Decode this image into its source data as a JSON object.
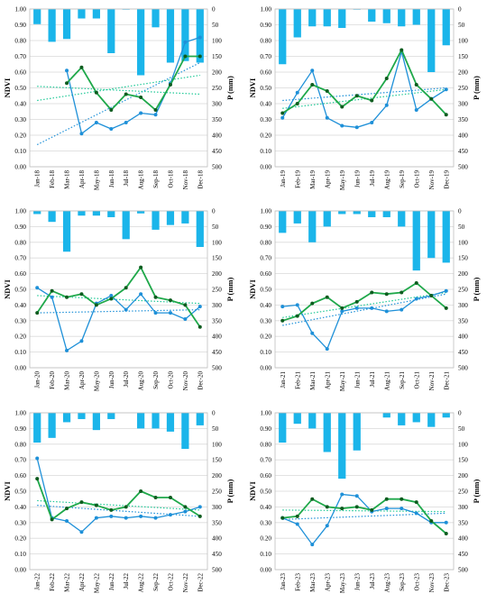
{
  "figure": {
    "left_axis_label": "NDVI",
    "right_axis_label": "P (mm)",
    "ndvi_ticks": [
      "0.00",
      "0.10",
      "0.20",
      "0.30",
      "0.40",
      "0.50",
      "0.60",
      "0.70",
      "0.80",
      "0.90",
      "1.00"
    ],
    "p_ticks": [
      "0",
      "50",
      "100",
      "150",
      "200",
      "250",
      "300",
      "350",
      "400",
      "450",
      "500"
    ],
    "colors": {
      "precip_bar": "#1bb5ea",
      "ndvi_a": "#1e90d8",
      "ndvi_b": "#1fa84a",
      "ndvi_b_marker": "#0d5c1f",
      "grid": "#d9d9d9"
    }
  },
  "chart_data": [
    {
      "type": "bar+line",
      "year": "2018",
      "categories": [
        "Jan-18",
        "Feb-18",
        "Mar-18",
        "Apr-18",
        "May-18",
        "Jun-18",
        "Jul-18",
        "Aug-18",
        "Sep-18",
        "Oct-18",
        "Nov-18",
        "Dec-18"
      ],
      "precipitation_mm": [
        48,
        104,
        95,
        30,
        30,
        140,
        2,
        210,
        58,
        170,
        165,
        170
      ],
      "series": [
        {
          "values": [
            null,
            null,
            0.61,
            0.21,
            0.28,
            0.24,
            0.28,
            0.34,
            0.33,
            0.53,
            0.79,
            0.82
          ]
        },
        {
          "values": [
            null,
            null,
            0.53,
            0.63,
            0.47,
            0.36,
            0.46,
            0.44,
            0.36,
            0.52,
            0.7,
            0.7
          ]
        }
      ],
      "trends": [
        [
          0.14,
          0.66
        ],
        [
          0.42,
          0.58
        ],
        [
          0.51,
          0.46
        ]
      ],
      "ylim": [
        0,
        1
      ],
      "y2lim": [
        500,
        0
      ]
    },
    {
      "type": "bar+line",
      "year": "2019",
      "categories": [
        "Jan-19",
        "Feb-19",
        "Mar-19",
        "Apr-19",
        "May-19",
        "Jun-19",
        "Jul-19",
        "Aug-19",
        "Sep-19",
        "Oct-19",
        "Nov-19",
        "Dec-19"
      ],
      "precipitation_mm": [
        175,
        90,
        55,
        55,
        60,
        2,
        40,
        45,
        55,
        50,
        200,
        115
      ],
      "series": [
        {
          "values": [
            0.31,
            0.47,
            0.61,
            0.31,
            0.26,
            0.25,
            0.28,
            0.39,
            0.73,
            0.36,
            0.43,
            0.49
          ]
        },
        {
          "values": [
            0.34,
            0.4,
            0.52,
            0.48,
            0.38,
            0.45,
            0.42,
            0.56,
            0.74,
            0.52,
            0.43,
            0.33
          ]
        }
      ],
      "trends": [
        [
          0.42,
          0.5
        ],
        [
          0.37,
          0.49
        ]
      ],
      "ylim": [
        0,
        1
      ],
      "y2lim": [
        500,
        0
      ]
    },
    {
      "type": "bar+line",
      "year": "2020",
      "categories": [
        "Jan-20",
        "Feb-20",
        "Mar-20",
        "Apr-20",
        "May-20",
        "Jun-20",
        "Jul-20",
        "Aug-20",
        "Sep-20",
        "Oct-20",
        "Nov-20",
        "Dec-20"
      ],
      "precipitation_mm": [
        10,
        35,
        130,
        15,
        15,
        20,
        90,
        8,
        60,
        45,
        40,
        115
      ],
      "series": [
        {
          "values": [
            0.51,
            0.45,
            0.11,
            0.17,
            0.41,
            0.46,
            0.37,
            0.47,
            0.35,
            0.35,
            0.31,
            0.39
          ]
        },
        {
          "values": [
            0.35,
            0.49,
            0.45,
            0.47,
            0.4,
            0.44,
            0.51,
            0.64,
            0.45,
            0.43,
            0.4,
            0.26
          ]
        }
      ],
      "trends": [
        [
          0.35,
          0.37
        ],
        [
          0.46,
          0.41
        ]
      ],
      "ylim": [
        0,
        1
      ],
      "y2lim": [
        500,
        0
      ]
    },
    {
      "type": "bar+line",
      "year": "2021",
      "categories": [
        "Jan-21",
        "Feb-21",
        "Mar-21",
        "Apr-21",
        "May-21",
        "Jun-21",
        "Jul-21",
        "Aug-21",
        "Sep-21",
        "Oct-21",
        "Nov-21",
        "Dec-21"
      ],
      "precipitation_mm": [
        70,
        40,
        100,
        50,
        10,
        10,
        20,
        20,
        50,
        190,
        150,
        165
      ],
      "series": [
        {
          "values": [
            0.39,
            0.4,
            0.22,
            0.12,
            0.36,
            0.38,
            0.38,
            0.36,
            0.37,
            0.44,
            0.46,
            0.49
          ]
        },
        {
          "values": [
            0.3,
            0.33,
            0.41,
            0.45,
            0.38,
            0.42,
            0.48,
            0.47,
            0.48,
            0.54,
            0.46,
            0.38
          ]
        }
      ],
      "trends": [
        [
          0.27,
          0.47
        ],
        [
          0.32,
          0.48
        ]
      ],
      "ylim": [
        0,
        1
      ],
      "y2lim": [
        500,
        0
      ]
    },
    {
      "type": "bar+line",
      "year": "2022",
      "categories": [
        "Jan-22",
        "Feb-22",
        "Mar-22",
        "Apr-22",
        "May-22",
        "Jun-22",
        "Jul-22",
        "Aug-22",
        "Sep-22",
        "Oct-22",
        "Nov-22",
        "Dec-22"
      ],
      "precipitation_mm": [
        95,
        80,
        30,
        20,
        55,
        20,
        0,
        50,
        50,
        60,
        115,
        40
      ],
      "series": [
        {
          "values": [
            0.71,
            0.33,
            0.31,
            0.24,
            0.33,
            0.34,
            0.33,
            0.34,
            0.33,
            0.35,
            0.37,
            0.4
          ]
        },
        {
          "values": [
            0.58,
            0.32,
            0.39,
            0.43,
            0.41,
            0.38,
            0.4,
            0.5,
            0.46,
            0.46,
            0.4,
            0.34
          ]
        }
      ],
      "trends": [
        [
          0.41,
          0.34
        ],
        [
          0.44,
          0.38
        ]
      ],
      "ylim": [
        0,
        1
      ],
      "y2lim": [
        500,
        0
      ]
    },
    {
      "type": "bar+line",
      "year": "2023",
      "categories": [
        "Jan-23",
        "Feb-23",
        "Mar-23",
        "Apr-23",
        "May-23",
        "Jun-23",
        "Jul-23",
        "Aug-23",
        "Sep-23",
        "Oct-23",
        "Nov-23",
        "Dec-23"
      ],
      "precipitation_mm": [
        95,
        35,
        50,
        125,
        210,
        120,
        0,
        15,
        40,
        30,
        45,
        15
      ],
      "series": [
        {
          "values": [
            0.33,
            0.29,
            0.16,
            0.28,
            0.48,
            0.47,
            0.37,
            0.39,
            0.39,
            0.36,
            0.3,
            0.3
          ]
        },
        {
          "values": [
            0.33,
            0.34,
            0.45,
            0.4,
            0.39,
            0.4,
            0.38,
            0.45,
            0.45,
            0.43,
            0.31,
            0.23
          ]
        }
      ],
      "trends": [
        [
          0.32,
          0.36
        ],
        [
          0.38,
          0.37
        ]
      ],
      "ylim": [
        0,
        1
      ],
      "y2lim": [
        500,
        0
      ]
    }
  ]
}
